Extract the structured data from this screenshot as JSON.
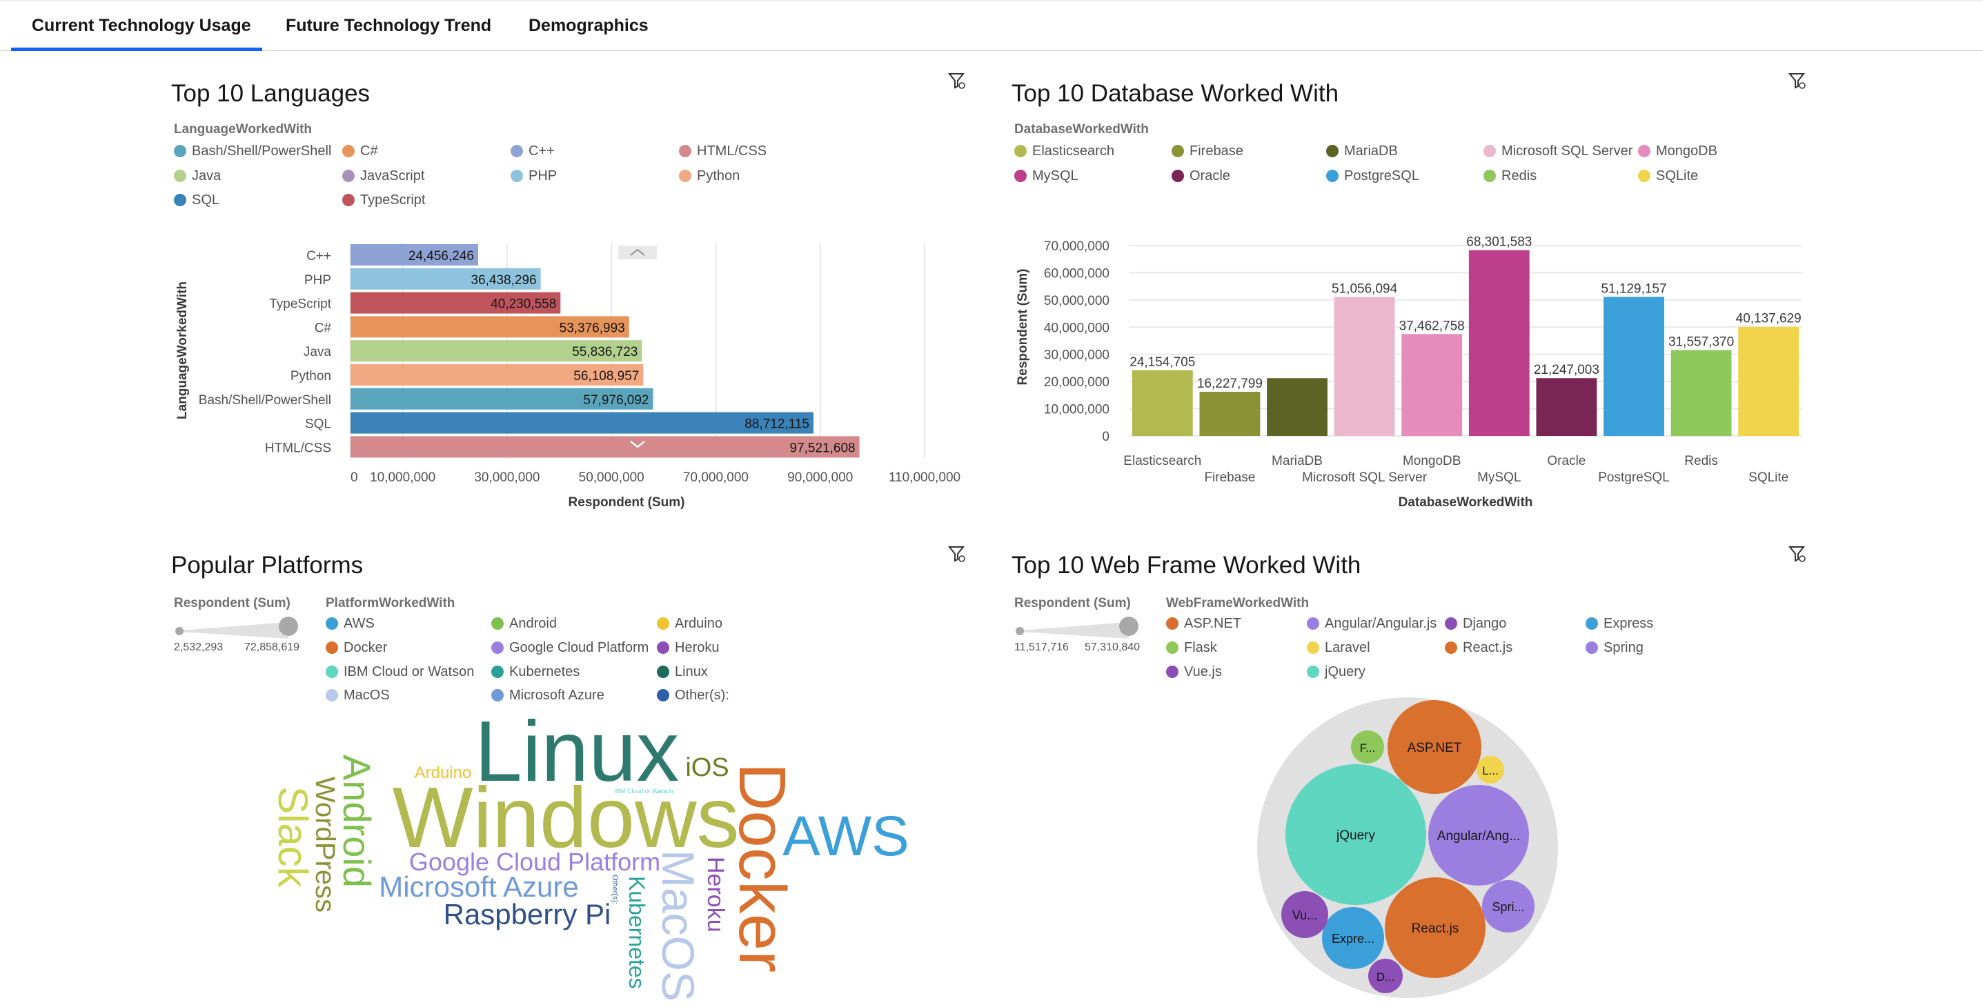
{
  "tabs": [
    {
      "label": "Current Technology Usage"
    },
    {
      "label": "Future Technology Trend"
    },
    {
      "label": "Demographics"
    }
  ],
  "languages": {
    "title": "Top 10 Languages",
    "legend_title": "LanguageWorkedWith",
    "legend": [
      {
        "label": "Bash/Shell/PowerShell",
        "color": "#5aa5bb"
      },
      {
        "label": "C#",
        "color": "#e8935a"
      },
      {
        "label": "C++",
        "color": "#8fa2d4"
      },
      {
        "label": "HTML/CSS",
        "color": "#d48a8c"
      },
      {
        "label": "Java",
        "color": "#b3d18c"
      },
      {
        "label": "JavaScript",
        "color": "#a892b8"
      },
      {
        "label": "PHP",
        "color": "#8ec3de"
      },
      {
        "label": "Python",
        "color": "#f2a880"
      },
      {
        "label": "SQL",
        "color": "#3b82b8"
      },
      {
        "label": "TypeScript",
        "color": "#c0545c"
      }
    ]
  },
  "databases": {
    "title": "Top 10 Database Worked With",
    "legend_title": "DatabaseWorkedWith",
    "legend": [
      {
        "label": "Elasticsearch",
        "color": "#b1b94f"
      },
      {
        "label": "Firebase",
        "color": "#8a9235"
      },
      {
        "label": "MariaDB",
        "color": "#5c6425"
      },
      {
        "label": "Microsoft SQL Server",
        "color": "#eab7cd"
      },
      {
        "label": "MongoDB",
        "color": "#e58cbc"
      },
      {
        "label": "MySQL",
        "color": "#bd3f8c"
      },
      {
        "label": "Oracle",
        "color": "#7a2655"
      },
      {
        "label": "PostgreSQL",
        "color": "#3b9fd9"
      },
      {
        "label": "Redis",
        "color": "#8ec75a"
      },
      {
        "label": "SQLite",
        "color": "#f2d44c"
      }
    ]
  },
  "platforms": {
    "title": "Popular Platforms",
    "size_legend_title": "Respondent (Sum)",
    "size_min": "2,532,293",
    "size_max": "72,858,619",
    "legend_title": "PlatformWorkedWith",
    "legend": [
      {
        "label": "AWS",
        "color": "#3b9fd9"
      },
      {
        "label": "Android",
        "color": "#7ec04e"
      },
      {
        "label": "Arduino",
        "color": "#f2c230"
      },
      {
        "label": "Docker",
        "color": "#d9702e"
      },
      {
        "label": "Google Cloud Platform",
        "color": "#9b7fe0"
      },
      {
        "label": "Heroku",
        "color": "#8c4fb5"
      },
      {
        "label": "IBM Cloud or Watson",
        "color": "#5fd6c0"
      },
      {
        "label": "Kubernetes",
        "color": "#2aa198"
      },
      {
        "label": "Linux",
        "color": "#1f6b5c"
      },
      {
        "label": "MacOS",
        "color": "#b8c8ea"
      },
      {
        "label": "Microsoft Azure",
        "color": "#6f9ad6"
      },
      {
        "label": "Other(s):",
        "color": "#2f5fa8"
      }
    ],
    "words": [
      {
        "text": "Linux",
        "color": "#2f7a6e"
      },
      {
        "text": "Windows",
        "color": "#b1b94f"
      },
      {
        "text": "Docker",
        "color": "#d9702e"
      },
      {
        "text": "AWS",
        "color": "#3b9fd9"
      },
      {
        "text": "iOS",
        "color": "#6e7a24"
      },
      {
        "text": "Arduino",
        "color": "#f2c230"
      },
      {
        "text": "IBM Cloud or Watson",
        "color": "#5fd6c0"
      },
      {
        "text": "Google Cloud Platform",
        "color": "#9b7fe0"
      },
      {
        "text": "Microsoft Azure",
        "color": "#6f9ad6"
      },
      {
        "text": "Raspberry Pi",
        "color": "#2f4f8a"
      },
      {
        "text": "Slack",
        "color": "#c9d44f"
      },
      {
        "text": "WordPress",
        "color": "#8a9235"
      },
      {
        "text": "Android",
        "color": "#7ec04e"
      },
      {
        "text": "Kubernetes",
        "color": "#2aa198"
      },
      {
        "text": "Other(s):",
        "color": "#2f5fa8"
      },
      {
        "text": "MacOS",
        "color": "#b8c8ea"
      },
      {
        "text": "Heroku",
        "color": "#8c4fb5"
      }
    ]
  },
  "webframes": {
    "title": "Top 10 Web Frame Worked With",
    "size_legend_title": "Respondent (Sum)",
    "size_min": "11,517,716",
    "size_max": "57,310,840",
    "legend_title": "WebFrameWorkedWith",
    "legend": [
      {
        "label": "ASP.NET",
        "color": "#d9702e"
      },
      {
        "label": "Angular/Angular.js",
        "color": "#9b7fe0"
      },
      {
        "label": "Django",
        "color": "#8c4fb5"
      },
      {
        "label": "Express",
        "color": "#3b9fd9"
      },
      {
        "label": "Flask",
        "color": "#8ec75a"
      },
      {
        "label": "Laravel",
        "color": "#f2d44c"
      },
      {
        "label": "React.js",
        "color": "#d9702e"
      },
      {
        "label": "Spring",
        "color": "#9b7fe0"
      },
      {
        "label": "Vue.js",
        "color": "#8c4fb5"
      },
      {
        "label": "jQuery",
        "color": "#5fd6c0"
      }
    ]
  },
  "chart_data": [
    {
      "type": "bar",
      "orientation": "horizontal",
      "title": "Top 10 Languages",
      "xlabel": "Respondent (Sum)",
      "ylabel": "LanguageWorkedWith",
      "categories": [
        "C++",
        "PHP",
        "TypeScript",
        "C#",
        "Java",
        "Python",
        "Bash/Shell/PowerShell",
        "SQL",
        "HTML/CSS"
      ],
      "values": [
        24456246,
        36438296,
        40230558,
        53376993,
        55836723,
        56108957,
        57976092,
        88712115,
        97521608
      ],
      "value_labels": [
        "24,456,246",
        "36,438,296",
        "40,230,558",
        "53,376,993",
        "55,836,723",
        "56,108,957",
        "57,976,092",
        "88,712,115",
        "97,521,608"
      ],
      "colors": [
        "#8fa2d4",
        "#8ec3de",
        "#c0545c",
        "#e8935a",
        "#b3d18c",
        "#f2a880",
        "#5aa5bb",
        "#3b82b8",
        "#d48a8c"
      ],
      "xticks": [
        0,
        10000000,
        30000000,
        50000000,
        70000000,
        90000000,
        110000000
      ],
      "xtick_labels": [
        "0",
        "10,000,000",
        "30,000,000",
        "50,000,000",
        "70,000,000",
        "90,000,000",
        "110,000,000"
      ],
      "xlim": [
        0,
        110000000
      ],
      "grid": true
    },
    {
      "type": "bar",
      "title": "Top 10 Database Worked With",
      "xlabel": "DatabaseWorkedWith",
      "ylabel": "Respondent (Sum)",
      "categories": [
        "Elasticsearch",
        "Firebase",
        "MariaDB",
        "Microsoft SQL Server",
        "MongoDB",
        "MySQL",
        "Oracle",
        "PostgreSQL",
        "Redis",
        "SQLite"
      ],
      "values": [
        24154705,
        16227799,
        21247003,
        51056094,
        37462758,
        68301583,
        21247003,
        51129157,
        31557370,
        40137629
      ],
      "value_labels": [
        "24,154,705",
        "16,227,799",
        "",
        "51,056,094",
        "37,462,758",
        "68,301,583",
        "21,247,003",
        "51,129,157",
        "31,557,370",
        "40,137,629"
      ],
      "colors": [
        "#b1b94f",
        "#8a9235",
        "#5c6425",
        "#eab7cd",
        "#e58cbc",
        "#bd3f8c",
        "#7a2655",
        "#3b9fd9",
        "#8ec75a",
        "#f2d44c"
      ],
      "yticks": [
        0,
        10000000,
        20000000,
        30000000,
        40000000,
        50000000,
        60000000,
        70000000
      ],
      "ytick_labels": [
        "0",
        "10,000,000",
        "20,000,000",
        "30,000,000",
        "40,000,000",
        "50,000,000",
        "60,000,000",
        "70,000,000"
      ],
      "ylim": [
        0,
        70000000
      ],
      "grid": true
    },
    {
      "type": "bubble",
      "title": "Top 10 Web Frame Worked With",
      "labels": [
        "jQuery",
        "ASP.NET",
        "Angular/Ang...",
        "React.js",
        "Expre...",
        "Vu...",
        "Spri...",
        "F...",
        "L...",
        "D..."
      ],
      "values": [
        57310840,
        26000000,
        31000000,
        30000000,
        11600000,
        11600000,
        11600000,
        11517716,
        11517716,
        11517716
      ]
    }
  ]
}
